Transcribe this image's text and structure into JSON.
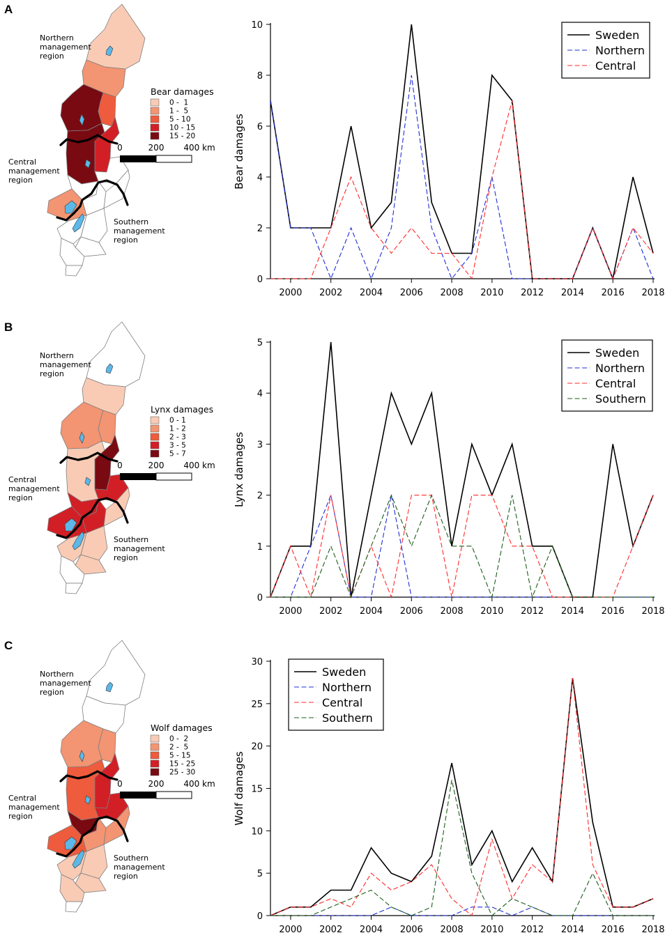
{
  "colors": {
    "sweden": "#000000",
    "northern": "#1f2fd6",
    "central": "#ff2a2a",
    "southern": "#1b5e1b",
    "lake": "#5bb8e8",
    "ramp": [
      "#f9cbb5",
      "#f39472",
      "#ee5b3d",
      "#d21f26",
      "#7a0a12"
    ]
  },
  "maps": [
    {
      "panel_letter": "A",
      "legend_title": "Bear damages",
      "legend_items": [
        "0 -  1",
        "1 -  5",
        "5 - 10",
        "10 - 15",
        "15 - 20"
      ],
      "region_labels": {
        "northern": [
          "Northern",
          "management",
          "region"
        ],
        "central": [
          "Central",
          "management",
          "region"
        ],
        "southern": [
          "Southern",
          "management",
          "region"
        ]
      },
      "scale": [
        "0",
        "200",
        "400 km"
      ],
      "county_classes": [
        1,
        2,
        3,
        5,
        4,
        5,
        0,
        0,
        0,
        0,
        2,
        0,
        0,
        0,
        0,
        0
      ]
    },
    {
      "panel_letter": "B",
      "legend_title": "Lynx damages",
      "legend_items": [
        "0 - 1",
        "1 - 2",
        "2 - 3",
        "3 - 5",
        "5 - 7"
      ],
      "region_labels": {
        "northern": [
          "Northern",
          "management",
          "region"
        ],
        "central": [
          "Central",
          "management",
          "region"
        ],
        "southern": [
          "Southern",
          "management",
          "region"
        ]
      },
      "scale": [
        "0",
        "200",
        "400 km"
      ],
      "county_classes": [
        0,
        1,
        2,
        2,
        5,
        1,
        4,
        4,
        4,
        1,
        4,
        1,
        1,
        1,
        0,
        0
      ]
    },
    {
      "panel_letter": "C",
      "legend_title": "Wolf damages",
      "legend_items": [
        "0 -  2",
        "2 -  5",
        "5 - 15",
        "15 - 25",
        "25 - 30"
      ],
      "region_labels": {
        "northern": [
          "Northern",
          "management",
          "region"
        ],
        "central": [
          "Central",
          "management",
          "region"
        ],
        "southern": [
          "Southern",
          "management",
          "region"
        ]
      },
      "scale": [
        "0",
        "200",
        "400 km"
      ],
      "county_classes": [
        0,
        0,
        2,
        2,
        4,
        3,
        4,
        5,
        2,
        2,
        3,
        1,
        1,
        1,
        1,
        0
      ]
    }
  ],
  "chart_data": [
    {
      "type": "line",
      "title": "",
      "xlabel": "",
      "ylabel": "Bear damages",
      "xlim": [
        1999,
        2018
      ],
      "ylim": [
        0,
        10
      ],
      "x_ticks": [
        2000,
        2002,
        2004,
        2006,
        2008,
        2010,
        2012,
        2014,
        2016,
        2018
      ],
      "y_ticks": [
        0,
        2,
        4,
        6,
        8,
        10
      ],
      "legend_position": "top-right",
      "x": [
        1999,
        2000,
        2001,
        2002,
        2003,
        2004,
        2005,
        2006,
        2007,
        2008,
        2009,
        2010,
        2011,
        2012,
        2013,
        2014,
        2015,
        2016,
        2017,
        2018
      ],
      "series": [
        {
          "name": "Sweden",
          "key": "sweden",
          "dashed": false,
          "values": [
            7,
            2,
            2,
            2,
            6,
            2,
            3,
            10,
            3,
            1,
            1,
            8,
            7,
            0,
            0,
            0,
            2,
            0,
            4,
            1
          ]
        },
        {
          "name": "Northern",
          "key": "northern",
          "dashed": true,
          "values": [
            7,
            2,
            2,
            0,
            2,
            0,
            2,
            8,
            2,
            0,
            1,
            4,
            0,
            0,
            0,
            0,
            2,
            0,
            2,
            0
          ]
        },
        {
          "name": "Central",
          "key": "central",
          "dashed": true,
          "values": [
            0,
            0,
            0,
            2,
            4,
            2,
            1,
            2,
            1,
            1,
            0,
            4,
            7,
            0,
            0,
            0,
            2,
            0,
            2,
            1
          ]
        }
      ]
    },
    {
      "type": "line",
      "title": "",
      "xlabel": "",
      "ylabel": "Lynx damages",
      "xlim": [
        1999,
        2018
      ],
      "ylim": [
        0,
        5
      ],
      "x_ticks": [
        2000,
        2002,
        2004,
        2006,
        2008,
        2010,
        2012,
        2014,
        2016,
        2018
      ],
      "y_ticks": [
        0,
        1,
        2,
        3,
        4,
        5
      ],
      "legend_position": "top-right",
      "x": [
        1999,
        2000,
        2001,
        2002,
        2003,
        2004,
        2005,
        2006,
        2007,
        2008,
        2009,
        2010,
        2011,
        2012,
        2013,
        2014,
        2015,
        2016,
        2017,
        2018
      ],
      "series": [
        {
          "name": "Sweden",
          "key": "sweden",
          "dashed": false,
          "values": [
            0,
            1,
            1,
            5,
            0,
            2,
            4,
            3,
            4,
            1,
            3,
            2,
            3,
            1,
            1,
            0,
            0,
            3,
            1,
            2
          ]
        },
        {
          "name": "Northern",
          "key": "northern",
          "dashed": true,
          "values": [
            0,
            0,
            1,
            2,
            0,
            0,
            2,
            0,
            0,
            0,
            0,
            0,
            0,
            0,
            0,
            0,
            0,
            0,
            0,
            0
          ]
        },
        {
          "name": "Central",
          "key": "central",
          "dashed": true,
          "values": [
            0,
            1,
            0,
            2,
            0,
            1,
            0,
            2,
            2,
            0,
            2,
            2,
            1,
            1,
            0,
            0,
            0,
            0,
            1,
            2
          ]
        },
        {
          "name": "Southern",
          "key": "southern",
          "dashed": true,
          "values": [
            0,
            0,
            0,
            1,
            0,
            1,
            2,
            1,
            2,
            1,
            1,
            0,
            2,
            0,
            1,
            0,
            0,
            0,
            0,
            0
          ]
        }
      ]
    },
    {
      "type": "line",
      "title": "",
      "xlabel": "",
      "ylabel": "Wolf damages",
      "xlim": [
        1999,
        2018
      ],
      "ylim": [
        0,
        30
      ],
      "x_ticks": [
        2000,
        2002,
        2004,
        2006,
        2008,
        2010,
        2012,
        2014,
        2016,
        2018
      ],
      "y_ticks": [
        0,
        5,
        10,
        15,
        20,
        25,
        30
      ],
      "legend_position": "top-left",
      "x": [
        1999,
        2000,
        2001,
        2002,
        2003,
        2004,
        2005,
        2006,
        2007,
        2008,
        2009,
        2010,
        2011,
        2012,
        2013,
        2014,
        2015,
        2016,
        2017,
        2018
      ],
      "series": [
        {
          "name": "Sweden",
          "key": "sweden",
          "dashed": false,
          "values": [
            0,
            1,
            1,
            3,
            3,
            8,
            5,
            4,
            7,
            18,
            6,
            10,
            4,
            8,
            4,
            28,
            11,
            1,
            1,
            2
          ]
        },
        {
          "name": "Northern",
          "key": "northern",
          "dashed": true,
          "values": [
            0,
            0,
            0,
            0,
            0,
            0,
            1,
            0,
            0,
            0,
            1,
            1,
            0,
            1,
            0,
            0,
            0,
            0,
            0,
            0
          ]
        },
        {
          "name": "Central",
          "key": "central",
          "dashed": true,
          "values": [
            0,
            1,
            1,
            2,
            1,
            5,
            3,
            4,
            6,
            2,
            0,
            9,
            2,
            6,
            4,
            28,
            6,
            1,
            1,
            2
          ]
        },
        {
          "name": "Southern",
          "key": "southern",
          "dashed": true,
          "values": [
            0,
            0,
            0,
            1,
            2,
            3,
            1,
            0,
            1,
            16,
            5,
            0,
            2,
            1,
            0,
            0,
            5,
            0,
            0,
            0
          ]
        }
      ]
    }
  ]
}
